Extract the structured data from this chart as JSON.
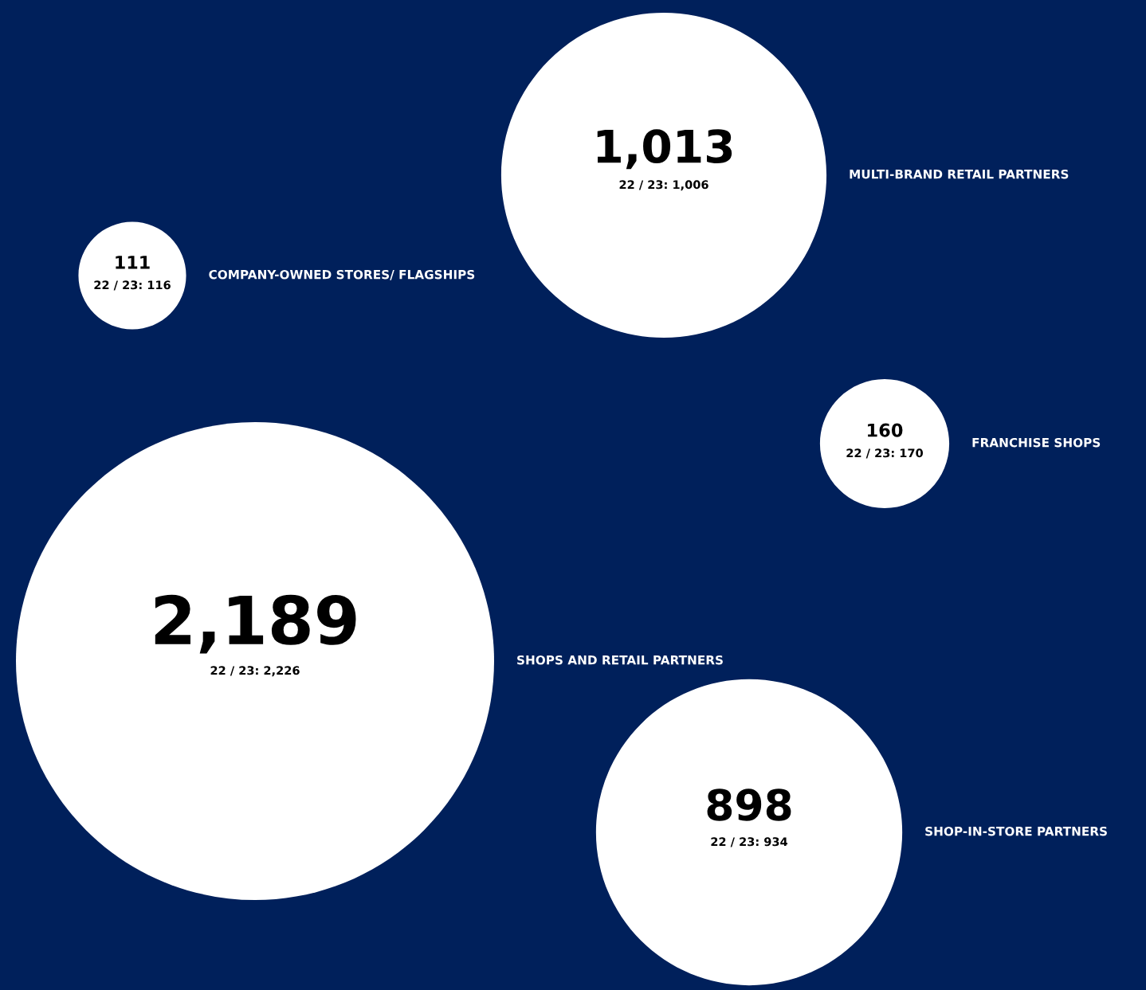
{
  "chart_data": {
    "type": "other",
    "categories": [
      "SHOPS AND RETAIL PARTNERS",
      "MULTI-BRAND RETAIL PARTNERS",
      "COMPANY-OWNED STORES/ FLAGSHIPS",
      "FRANCHISE SHOPS",
      "SHOP-IN-STORE PARTNERS"
    ],
    "series": [
      {
        "color": "#ffffff",
        "values": [
          2189,
          1013,
          111,
          160,
          898
        ],
        "value_labels": [
          "2,189",
          "1,013",
          "111",
          "160",
          "898"
        ]
      },
      {
        "color": "#ffffff",
        "values": [
          2226,
          1006,
          116,
          170,
          934
        ],
        "value_labels": [
          "22 / 23: 2,226",
          "22 / 23: 1,006",
          "22 / 23: 116",
          "22 / 23: 170",
          "22 / 23: 934"
        ]
      }
    ]
  }
}
